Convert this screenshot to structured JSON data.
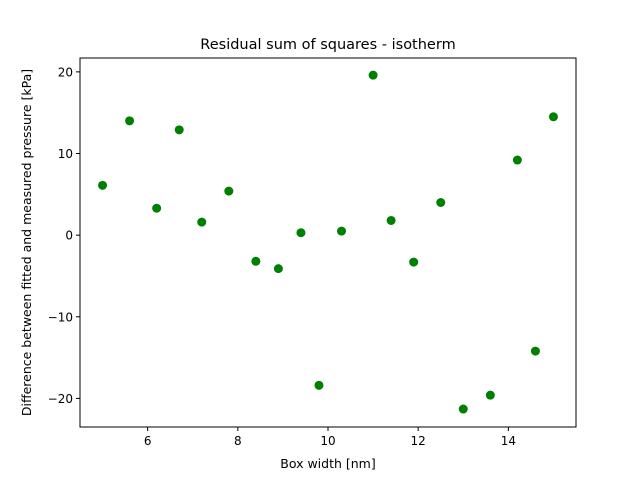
{
  "chart_data": {
    "type": "scatter",
    "title": "Residual sum of squares - isotherm",
    "xlabel": "Box width [nm]",
    "ylabel": "Difference between fitted and measured pressure [kPa]",
    "xlim": [
      4.5,
      15.5
    ],
    "ylim": [
      -23.5,
      21.7
    ],
    "x_ticks": [
      6,
      8,
      10,
      12,
      14
    ],
    "y_ticks": [
      -20,
      -10,
      0,
      10,
      20
    ],
    "x_tick_labels": [
      "6",
      "8",
      "10",
      "12",
      "14"
    ],
    "y_tick_labels": [
      "−20",
      "−10",
      "0",
      "10",
      "20"
    ],
    "grid": false,
    "marker_color": "#008000",
    "series": [
      {
        "x": [
          5.0,
          5.6,
          6.2,
          6.7,
          7.2,
          7.8,
          8.4,
          8.9,
          9.4,
          9.8,
          10.3,
          11.0,
          11.4,
          11.9,
          12.5,
          13.0,
          13.6,
          14.2,
          14.6,
          15.0
        ],
        "y": [
          6.1,
          14.0,
          3.3,
          12.9,
          1.6,
          5.4,
          -3.2,
          -4.1,
          0.3,
          -18.4,
          0.5,
          19.6,
          1.8,
          -3.3,
          4.0,
          -21.3,
          -19.6,
          9.2,
          -14.2,
          14.5
        ]
      }
    ]
  }
}
